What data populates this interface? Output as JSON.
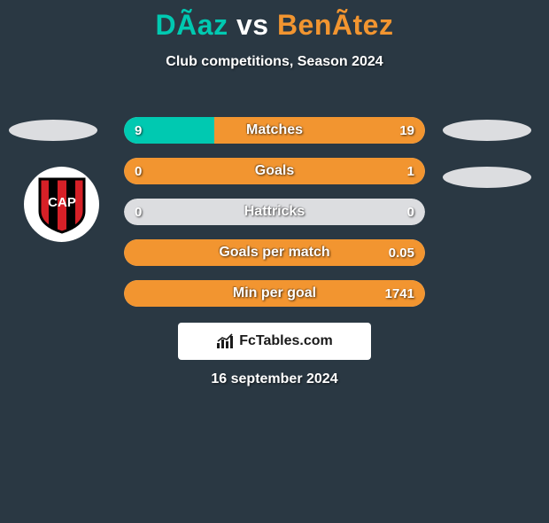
{
  "title": {
    "player1": "DÃ­az",
    "vs": "vs",
    "player2": "BenÃ­tez",
    "color_player1": "#00c9b1",
    "color_vs": "#ffffff",
    "color_player2": "#f29530"
  },
  "subtitle": "Club competitions, Season 2024",
  "bar_colors": {
    "left": "#00c9b1",
    "right": "#f29530",
    "neutral": "#dcdde0"
  },
  "rows": [
    {
      "label": "Matches",
      "left_val": "9",
      "right_val": "19",
      "left_pct": 30,
      "right_pct": 70,
      "full_left": false,
      "full_right": false
    },
    {
      "label": "Goals",
      "left_val": "0",
      "right_val": "1",
      "left_pct": 0,
      "right_pct": 100,
      "full_left": false,
      "full_right": true
    },
    {
      "label": "Hattricks",
      "left_val": "0",
      "right_val": "0",
      "left_pct": 0,
      "right_pct": 0,
      "full_left": false,
      "full_right": false
    },
    {
      "label": "Goals per match",
      "left_val": "",
      "right_val": "0.05",
      "left_pct": 0,
      "right_pct": 100,
      "full_left": false,
      "full_right": true
    },
    {
      "label": "Min per goal",
      "left_val": "",
      "right_val": "1741",
      "left_pct": 0,
      "right_pct": 100,
      "full_left": false,
      "full_right": true
    }
  ],
  "footer_brand": "FcTables.com",
  "date": "16 september 2024",
  "club_badge": {
    "bg": "#ffffff",
    "shield_border": "#000000",
    "stripe_red": "#d62027",
    "stripe_black": "#000000",
    "text": "CAP",
    "text_color": "#ffffff"
  }
}
